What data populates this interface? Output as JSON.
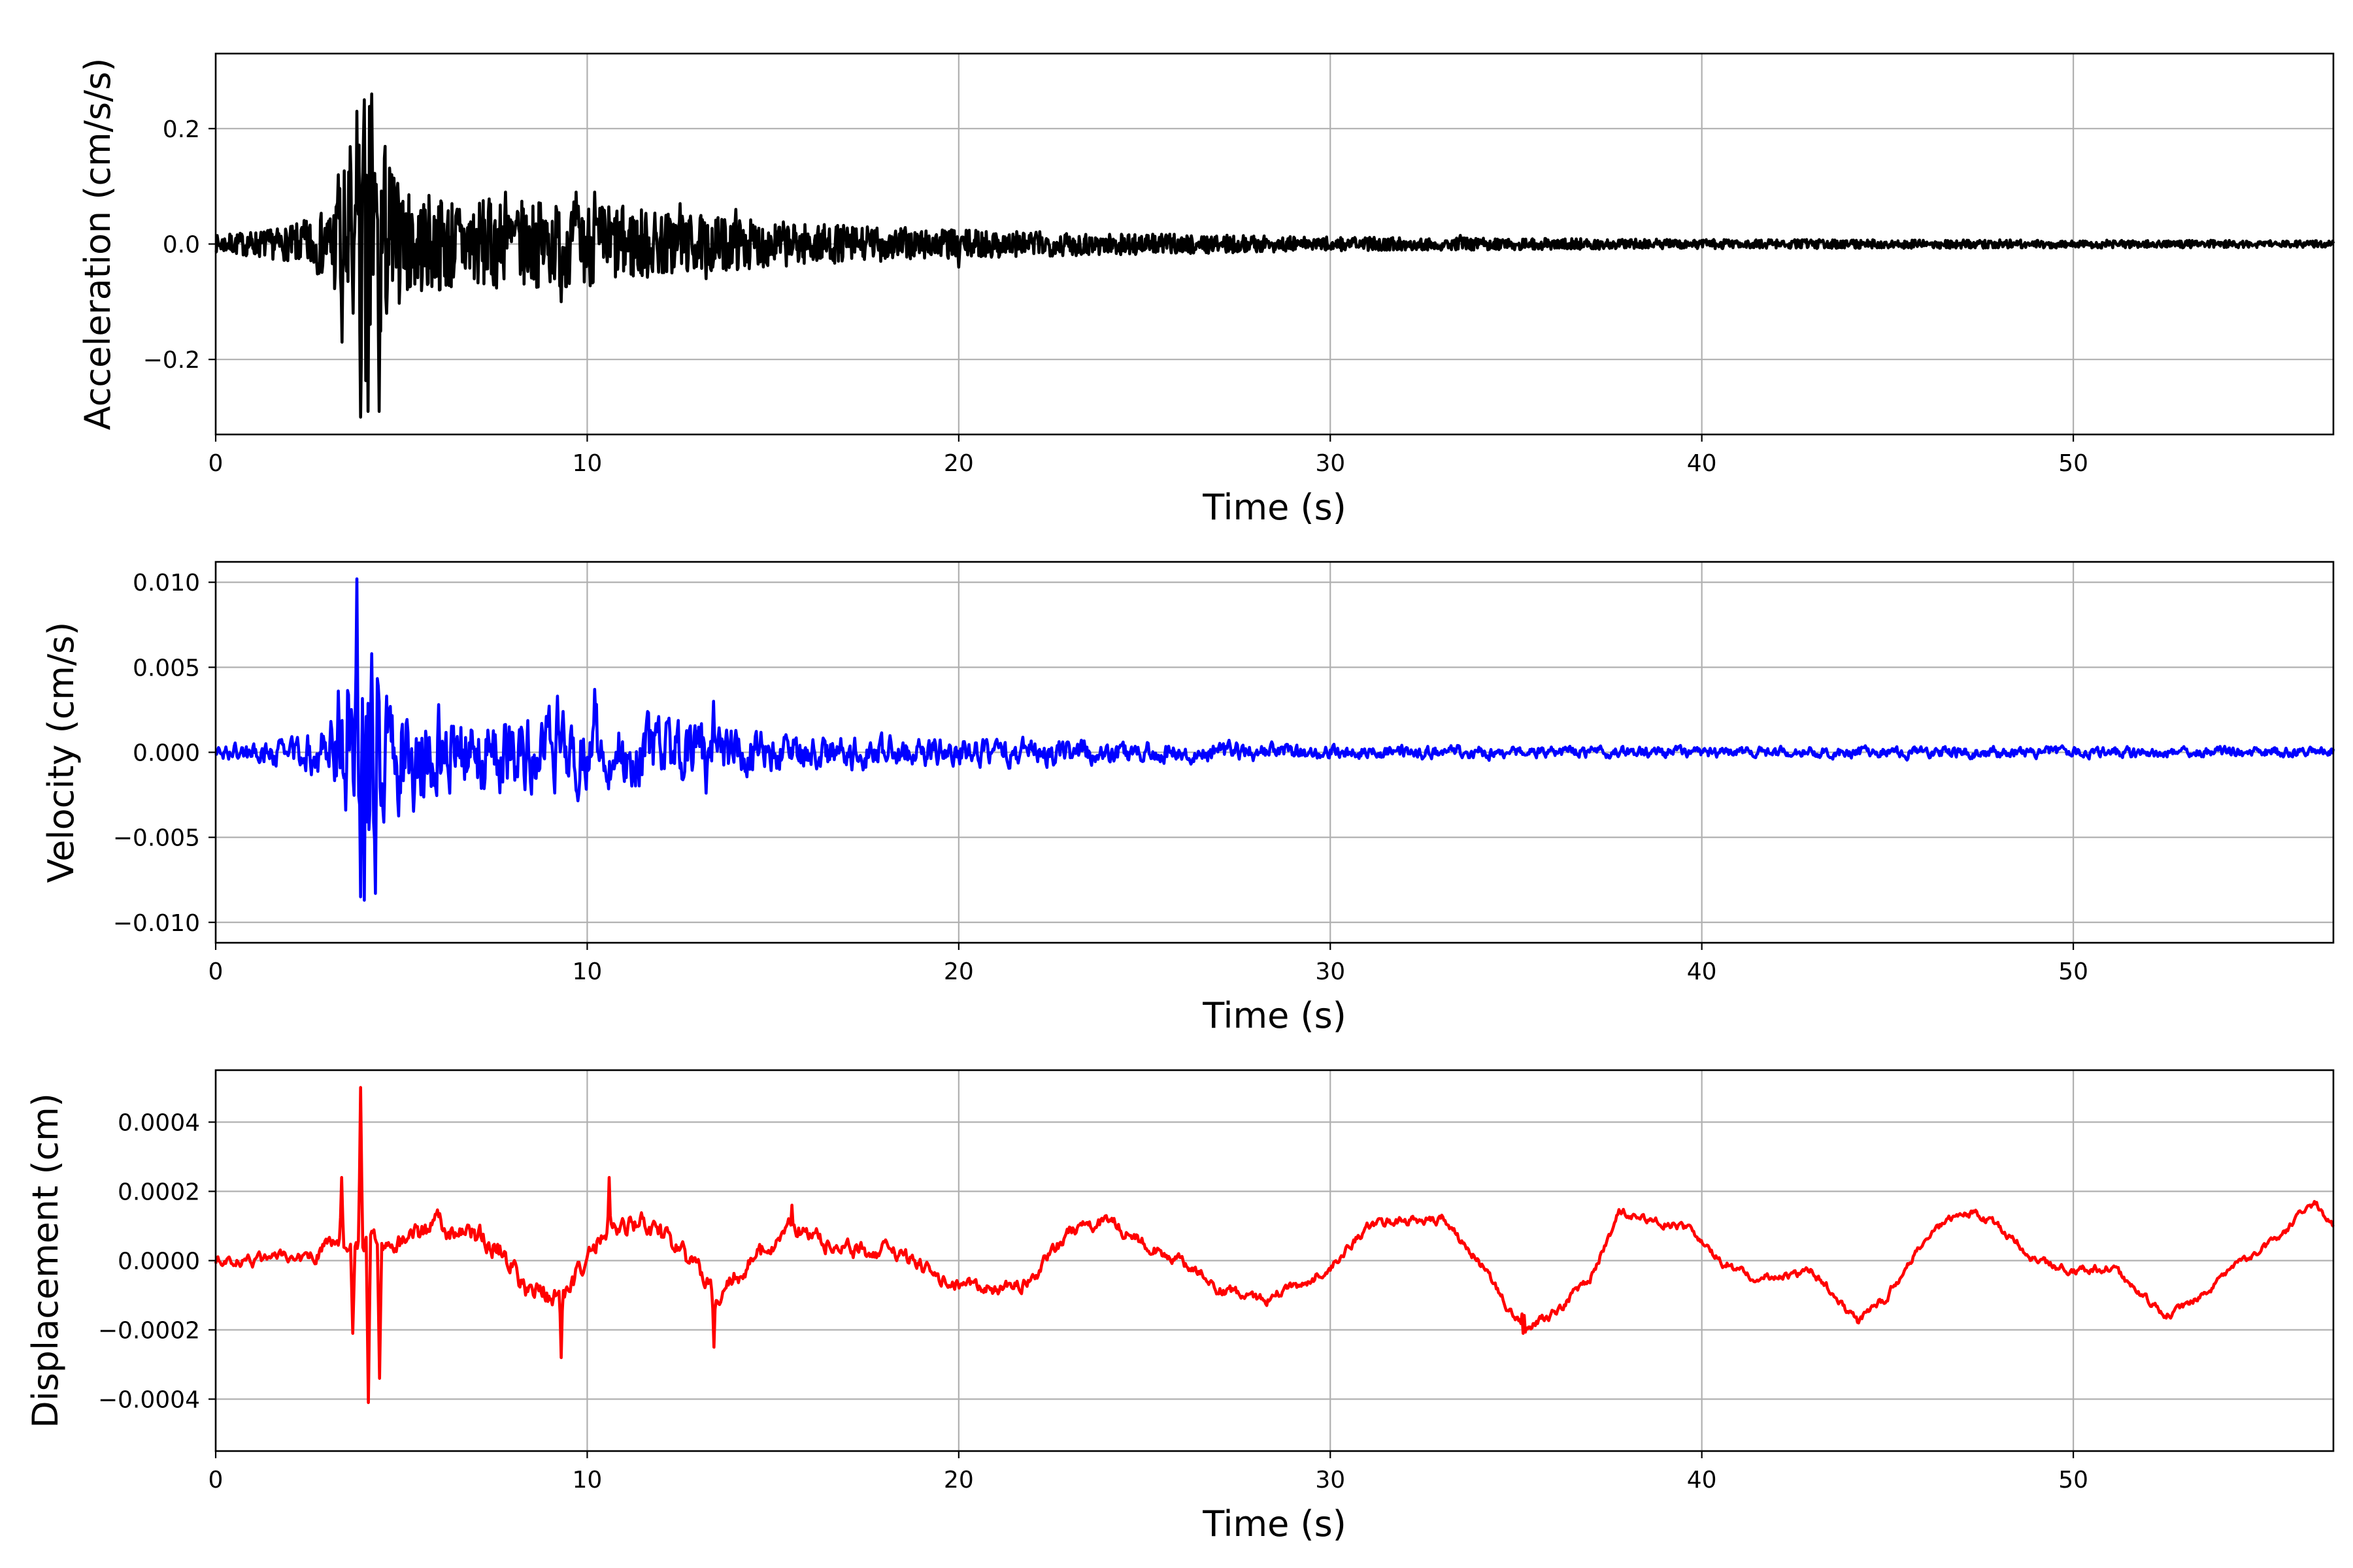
{
  "figure": {
    "background": "#ffffff",
    "grid_color": "#b0b0b0",
    "signal_seed": 7
  },
  "chart_data": [
    {
      "type": "line",
      "title": "",
      "xlabel": "Time (s)",
      "ylabel": "Acceleration (cm/s/s)",
      "xlim": [
        0,
        57
      ],
      "ylim": [
        -0.33,
        0.33
      ],
      "xticks": [
        0,
        10,
        20,
        30,
        40,
        50
      ],
      "xtick_labels": [
        "0",
        "10",
        "20",
        "30",
        "40",
        "50"
      ],
      "yticks": [
        -0.2,
        0.0,
        0.2
      ],
      "ytick_labels": [
        "−0.2",
        "0.0",
        "0.2"
      ],
      "grid": true,
      "series": [
        {
          "color": "#000000",
          "signal": "high-frequency",
          "peaks": [
            [
              3.3,
              0.12
            ],
            [
              3.4,
              -0.17
            ],
            [
              3.7,
              -0.12
            ],
            [
              3.8,
              0.23
            ],
            [
              3.9,
              -0.3
            ],
            [
              4.0,
              0.25
            ],
            [
              4.1,
              -0.29
            ],
            [
              4.2,
              0.26
            ],
            [
              4.4,
              -0.29
            ],
            [
              4.6,
              -0.12
            ],
            [
              5.0,
              0.07
            ],
            [
              7.8,
              0.09
            ],
            [
              9.3,
              -0.1
            ],
            [
              9.7,
              0.09
            ],
            [
              10.2,
              0.09
            ],
            [
              12.5,
              0.07
            ],
            [
              13.2,
              -0.06
            ],
            [
              14.0,
              0.06
            ],
            [
              20.0,
              -0.04
            ],
            [
              33.5,
              0.015
            ]
          ],
          "envelope": [
            [
              0,
              0.015
            ],
            [
              2.0,
              0.03
            ],
            [
              3.0,
              0.06
            ],
            [
              3.5,
              0.14
            ],
            [
              4.0,
              0.28
            ],
            [
              4.5,
              0.2
            ],
            [
              5.0,
              0.09
            ],
            [
              8.0,
              0.075
            ],
            [
              10.0,
              0.075
            ],
            [
              13.0,
              0.05
            ],
            [
              16.0,
              0.035
            ],
            [
              20.0,
              0.025
            ],
            [
              25.0,
              0.018
            ],
            [
              30.0,
              0.012
            ],
            [
              35.0,
              0.01
            ],
            [
              40.0,
              0.008
            ],
            [
              50.0,
              0.007
            ],
            [
              57.0,
              0.006
            ]
          ]
        }
      ]
    },
    {
      "type": "line",
      "title": "",
      "xlabel": "Time (s)",
      "ylabel": "Velocity (cm/s)",
      "xlim": [
        0,
        57
      ],
      "ylim": [
        -0.0112,
        0.0112
      ],
      "xticks": [
        0,
        10,
        20,
        30,
        40,
        50
      ],
      "xtick_labels": [
        "0",
        "10",
        "20",
        "30",
        "40",
        "50"
      ],
      "yticks": [
        -0.01,
        -0.005,
        0.0,
        0.005,
        0.01
      ],
      "ytick_labels": [
        "−0.010",
        "−0.005",
        "0.000",
        "0.005",
        "0.010"
      ],
      "grid": true,
      "series": [
        {
          "color": "#0000ff",
          "signal": "mid-frequency",
          "peaks": [
            [
              3.3,
              0.0036
            ],
            [
              3.5,
              -0.0034
            ],
            [
              3.8,
              0.0102
            ],
            [
              3.9,
              -0.0085
            ],
            [
              4.0,
              -0.0087
            ],
            [
              4.2,
              0.0058
            ],
            [
              4.3,
              -0.0083
            ],
            [
              4.6,
              0.0033
            ],
            [
              6.0,
              0.0028
            ],
            [
              9.2,
              0.0033
            ],
            [
              10.2,
              0.0037
            ],
            [
              13.4,
              0.003
            ],
            [
              13.2,
              -0.0024
            ]
          ],
          "envelope": [
            [
              0,
              0.0004
            ],
            [
              2.0,
              0.0008
            ],
            [
              3.0,
              0.0015
            ],
            [
              3.6,
              0.004
            ],
            [
              4.0,
              0.009
            ],
            [
              4.6,
              0.004
            ],
            [
              6.0,
              0.0022
            ],
            [
              10.0,
              0.002
            ],
            [
              13.0,
              0.0016
            ],
            [
              16.0,
              0.001
            ],
            [
              20.0,
              0.0008
            ],
            [
              25.0,
              0.0006
            ],
            [
              30.0,
              0.0004
            ],
            [
              35.0,
              0.00035
            ],
            [
              40.0,
              0.0003
            ],
            [
              50.0,
              0.0003
            ],
            [
              57.0,
              0.0003
            ]
          ]
        }
      ]
    },
    {
      "type": "line",
      "title": "",
      "xlabel": "Time (s)",
      "ylabel": "Displacement (cm)",
      "xlim": [
        0,
        57
      ],
      "ylim": [
        -0.00055,
        0.00055
      ],
      "xticks": [
        0,
        10,
        20,
        30,
        40,
        50
      ],
      "xtick_labels": [
        "0",
        "10",
        "20",
        "30",
        "40",
        "50"
      ],
      "yticks": [
        -0.0004,
        -0.0002,
        0.0,
        0.0002,
        0.0004
      ],
      "ytick_labels": [
        "−0.0004",
        "−0.0002",
        "0.0000",
        "0.0002",
        "0.0004"
      ],
      "grid": true,
      "series": [
        {
          "color": "#ff0000",
          "signal": "low-frequency",
          "baseline": [
            [
              0,
              0.0
            ],
            [
              1.5,
              0.0
            ],
            [
              2.5,
              0.0
            ],
            [
              3.0,
              5e-05
            ],
            [
              5.0,
              5e-05
            ],
            [
              6.0,
              0.0001
            ],
            [
              7.5,
              5e-05
            ],
            [
              8.5,
              -0.0001
            ],
            [
              9.5,
              -0.0001
            ],
            [
              10.5,
              0.0001
            ],
            [
              11.5,
              0.0001
            ],
            [
              12.5,
              3e-05
            ],
            [
              13.5,
              -0.0001
            ],
            [
              14.5,
              0.0
            ],
            [
              15.5,
              0.0001
            ],
            [
              17.0,
              3e-05
            ],
            [
              18.5,
              2e-05
            ],
            [
              19.5,
              -5e-05
            ],
            [
              20.5,
              -8e-05
            ],
            [
              21.5,
              -8e-05
            ],
            [
              22.0,
              -5e-05
            ],
            [
              23.0,
              8e-05
            ],
            [
              24.0,
              0.00012
            ],
            [
              25.0,
              5e-05
            ],
            [
              26.0,
              0.0
            ],
            [
              27.0,
              -8e-05
            ],
            [
              28.0,
              -0.00012
            ],
            [
              29.0,
              -8e-05
            ],
            [
              30.0,
              -2e-05
            ],
            [
              31.0,
              0.0001
            ],
            [
              32.0,
              0.00012
            ],
            [
              33.0,
              0.00012
            ],
            [
              34.0,
              0.0
            ],
            [
              35.2,
              -0.0002
            ],
            [
              36.0,
              -0.00015
            ],
            [
              37.0,
              -5e-05
            ],
            [
              37.8,
              0.00014
            ],
            [
              38.5,
              0.00012
            ],
            [
              39.5,
              0.0001
            ],
            [
              40.5,
              0.0
            ],
            [
              41.5,
              -5e-05
            ],
            [
              43.0,
              -3e-05
            ],
            [
              44.2,
              -0.00018
            ],
            [
              45.0,
              -0.0001
            ],
            [
              46.0,
              6e-05
            ],
            [
              47.0,
              0.00015
            ],
            [
              48.0,
              0.0001
            ],
            [
              49.0,
              0.0
            ],
            [
              50.0,
              -3e-05
            ],
            [
              51.0,
              -2e-05
            ],
            [
              52.5,
              -0.00016
            ],
            [
              53.5,
              -0.0001
            ],
            [
              54.5,
              0.0
            ],
            [
              55.5,
              6e-05
            ],
            [
              56.5,
              0.00017
            ],
            [
              57.0,
              0.0001
            ]
          ],
          "peaks": [
            [
              3.4,
              0.00024
            ],
            [
              3.7,
              -0.00021
            ],
            [
              3.9,
              0.0005
            ],
            [
              4.1,
              -0.00041
            ],
            [
              4.4,
              -0.00034
            ],
            [
              9.3,
              -0.00028
            ],
            [
              10.6,
              0.00024
            ],
            [
              13.4,
              -0.00025
            ],
            [
              15.5,
              0.00016
            ],
            [
              35.2,
              -0.00021
            ]
          ],
          "envelope": [
            [
              0,
              2e-05
            ],
            [
              3.0,
              3e-05
            ],
            [
              5.0,
              4e-05
            ],
            [
              10.0,
              5e-05
            ],
            [
              14.0,
              4e-05
            ],
            [
              20.0,
              3e-05
            ],
            [
              30.0,
              2e-05
            ],
            [
              57.0,
              1.5e-05
            ]
          ]
        }
      ]
    }
  ]
}
